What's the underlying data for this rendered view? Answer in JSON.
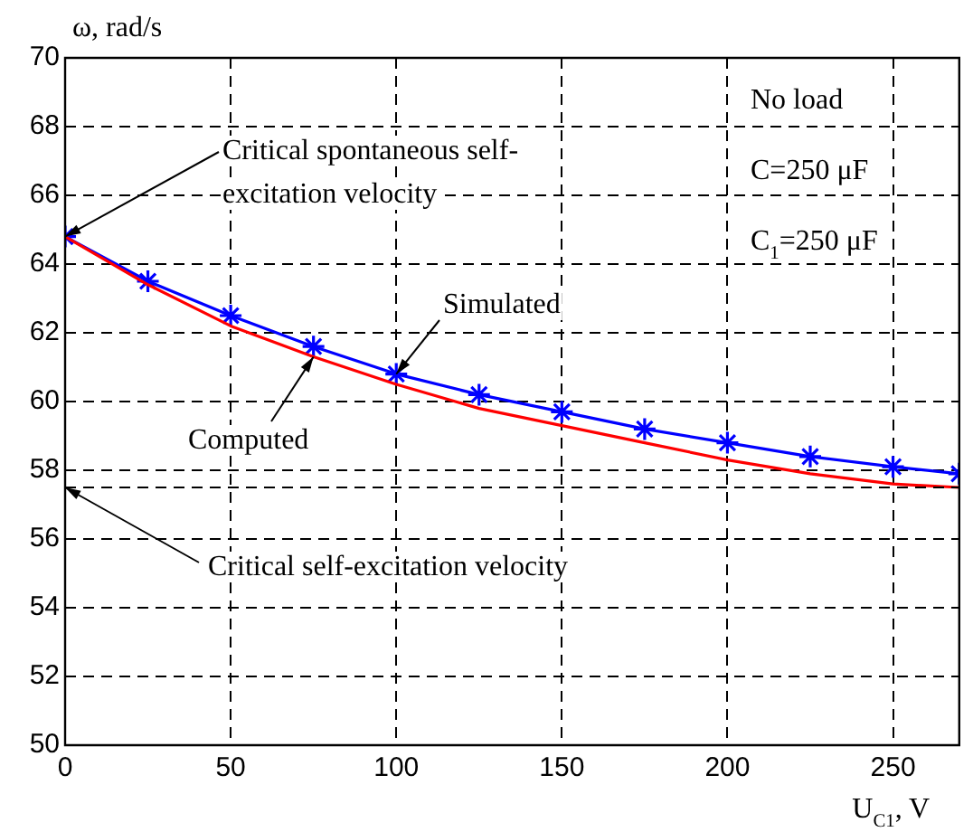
{
  "chart_data": {
    "type": "line",
    "xlabel": "U$_{C1}$, V",
    "ylabel": "ω, rad/s",
    "x": [
      0,
      25,
      50,
      75,
      100,
      125,
      150,
      175,
      200,
      225,
      250,
      270
    ],
    "series": [
      {
        "name": "Computed",
        "color": "#ff0000",
        "marker": "none",
        "values": [
          64.8,
          63.4,
          62.2,
          61.3,
          60.5,
          59.8,
          59.3,
          58.8,
          58.3,
          57.9,
          57.6,
          57.5
        ]
      },
      {
        "name": "Simulated",
        "color": "#0000ff",
        "marker": "cross",
        "values": [
          64.8,
          63.5,
          62.5,
          61.6,
          60.8,
          60.2,
          59.7,
          59.2,
          58.8,
          58.4,
          58.1,
          57.9
        ]
      }
    ],
    "xlim": [
      0,
      270
    ],
    "xticks": [
      0,
      50,
      100,
      150,
      200,
      250
    ],
    "ylim": [
      50,
      70
    ],
    "yticks": [
      50,
      52,
      54,
      56,
      58,
      60,
      62,
      64,
      66,
      68,
      70
    ],
    "grid": true,
    "legend": false,
    "line_style": "solid",
    "ref_lines": [
      {
        "axis": "y",
        "value": 57.5,
        "color": "#000000",
        "line_style": "dashed"
      }
    ],
    "annotations": [
      {
        "text": "Critical spontaneous self-excitation velocity",
        "x": 0,
        "y": 64.8
      },
      {
        "text": "Critical self-excitation velocity",
        "x": 0,
        "y": 57.5
      },
      "No load",
      "C=250 μF",
      "C$_{1}$=250 μF"
    ]
  }
}
